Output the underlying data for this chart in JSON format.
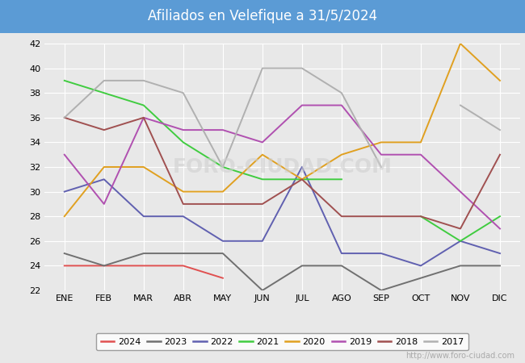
{
  "title": "Afiliados en Velefique a 31/5/2024",
  "title_bg_color": "#5b9bd5",
  "title_text_color": "white",
  "ylim": [
    22,
    42
  ],
  "yticks": [
    22,
    24,
    26,
    28,
    30,
    32,
    34,
    36,
    38,
    40,
    42
  ],
  "months": [
    "ENE",
    "FEB",
    "MAR",
    "ABR",
    "MAY",
    "JUN",
    "JUL",
    "AGO",
    "SEP",
    "OCT",
    "NOV",
    "DIC"
  ],
  "watermark": "http://www.foro-ciudad.com",
  "series": [
    {
      "label": "2024",
      "color": "#e05050",
      "data": [
        24,
        24,
        24,
        24,
        23,
        null,
        null,
        null,
        null,
        null,
        null,
        null
      ]
    },
    {
      "label": "2023",
      "color": "#707070",
      "data": [
        25,
        24,
        25,
        25,
        25,
        22,
        24,
        24,
        22,
        23,
        24,
        24
      ]
    },
    {
      "label": "2022",
      "color": "#6060b0",
      "data": [
        30,
        31,
        28,
        28,
        26,
        26,
        32,
        25,
        25,
        24,
        26,
        25
      ]
    },
    {
      "label": "2021",
      "color": "#40cc40",
      "data": [
        39,
        38,
        37,
        34,
        32,
        31,
        31,
        31,
        null,
        28,
        26,
        28
      ]
    },
    {
      "label": "2020",
      "color": "#e0a020",
      "data": [
        28,
        32,
        32,
        30,
        30,
        33,
        31,
        33,
        34,
        34,
        42,
        39
      ]
    },
    {
      "label": "2019",
      "color": "#b050b0",
      "data": [
        33,
        29,
        36,
        35,
        35,
        34,
        37,
        37,
        33,
        33,
        30,
        27
      ]
    },
    {
      "label": "2018",
      "color": "#a05050",
      "data": [
        36,
        35,
        36,
        29,
        29,
        29,
        31,
        28,
        28,
        28,
        27,
        33
      ]
    },
    {
      "label": "2017",
      "color": "#b0b0b0",
      "data": [
        36,
        39,
        39,
        38,
        32,
        40,
        40,
        38,
        32,
        null,
        37,
        35
      ]
    }
  ],
  "bg_color": "#e8e8e8",
  "plot_bg_color": "#e8e8e8",
  "grid_color": "white",
  "watermark_color": "#d0d0d0"
}
